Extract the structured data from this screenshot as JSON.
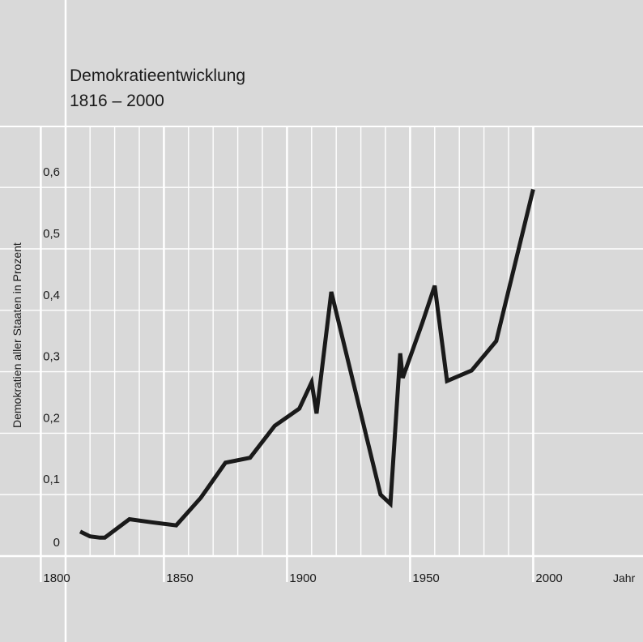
{
  "chart_data": {
    "type": "line",
    "title_line1": "Demokratieentwicklung",
    "title_line2": "1816 – 2000",
    "xlabel": "Jahr",
    "ylabel": "Demokratien aller Staaten in Prozent",
    "xlim": [
      1790,
      2025
    ],
    "ylim": [
      0,
      0.7
    ],
    "x_ticks": [
      {
        "value": 1800,
        "label": "1800"
      },
      {
        "value": 1850,
        "label": "1850"
      },
      {
        "value": 1900,
        "label": "1900"
      },
      {
        "value": 1950,
        "label": "1950"
      },
      {
        "value": 2000,
        "label": "2000"
      }
    ],
    "y_ticks": [
      {
        "value": 0,
        "label": "0"
      },
      {
        "value": 0.1,
        "label": "0,1"
      },
      {
        "value": 0.2,
        "label": "0,2"
      },
      {
        "value": 0.3,
        "label": "0,3"
      },
      {
        "value": 0.4,
        "label": "0,4"
      },
      {
        "value": 0.5,
        "label": "0,5"
      },
      {
        "value": 0.6,
        "label": "0,6"
      }
    ],
    "grid": true,
    "line_color": "#1a1a1a",
    "series": [
      {
        "x": [
          1816,
          1820,
          1824,
          1826,
          1836,
          1845,
          1855,
          1865,
          1875,
          1885,
          1895,
          1905,
          1910,
          1912,
          1918,
          1938,
          1942,
          1946,
          1947,
          1955,
          1960,
          1965,
          1975,
          1985,
          2000
        ],
        "y": [
          0.04,
          0.032,
          0.03,
          0.03,
          0.06,
          0.055,
          0.05,
          0.095,
          0.152,
          0.16,
          0.212,
          0.24,
          0.283,
          0.232,
          0.43,
          0.1,
          0.085,
          0.33,
          0.29,
          0.38,
          0.44,
          0.285,
          0.302,
          0.35,
          0.597
        ]
      }
    ]
  }
}
